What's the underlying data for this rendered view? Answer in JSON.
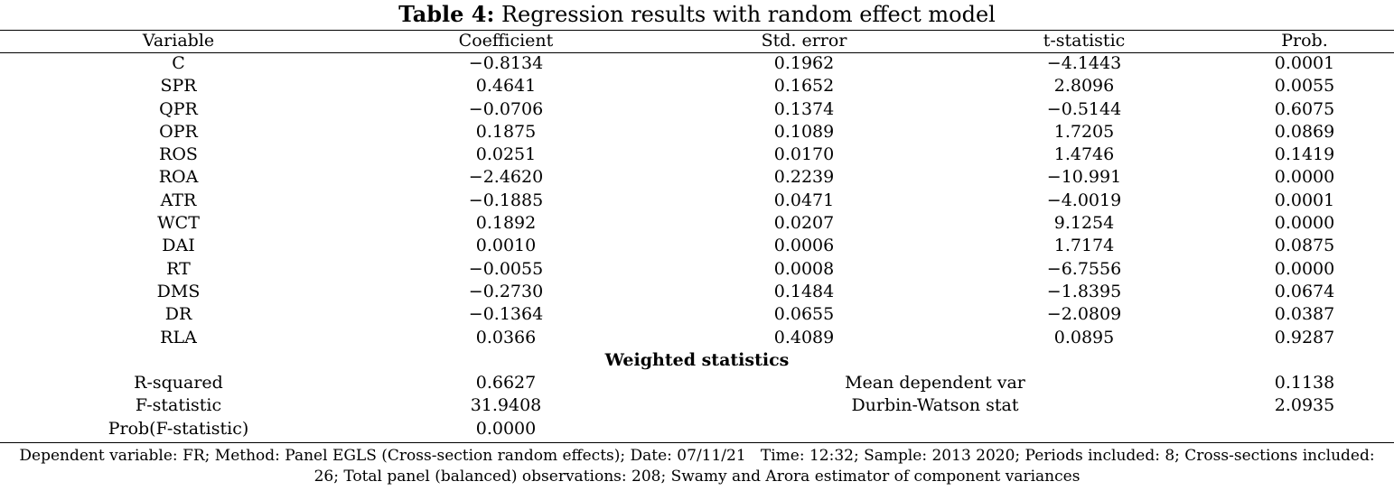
{
  "caption": {
    "label": "Table 4:",
    "text": "Regression results with random effect model"
  },
  "columns": [
    "Variable",
    "Coefficient",
    "Std. error",
    "t-statistic",
    "Prob."
  ],
  "rows": [
    [
      "C",
      "−0.8134",
      "0.1962",
      "−4.1443",
      "0.0001"
    ],
    [
      "SPR",
      "0.4641",
      "0.1652",
      "2.8096",
      "0.0055"
    ],
    [
      "QPR",
      "−0.0706",
      "0.1374",
      "−0.5144",
      "0.6075"
    ],
    [
      "OPR",
      "0.1875",
      "0.1089",
      "1.7205",
      "0.0869"
    ],
    [
      "ROS",
      "0.0251",
      "0.0170",
      "1.4746",
      "0.1419"
    ],
    [
      "ROA",
      "−2.4620",
      "0.2239",
      "−10.991",
      "0.0000"
    ],
    [
      "ATR",
      "−0.1885",
      "0.0471",
      "−4.0019",
      "0.0001"
    ],
    [
      "WCT",
      "0.1892",
      "0.0207",
      "9.1254",
      "0.0000"
    ],
    [
      "DAI",
      "0.0010",
      "0.0006",
      "1.7174",
      "0.0875"
    ],
    [
      "RT",
      "−0.0055",
      "0.0008",
      "−6.7556",
      "0.0000"
    ],
    [
      "DMS",
      "−0.2730",
      "0.1484",
      "−1.8395",
      "0.0674"
    ],
    [
      "DR",
      "−0.1364",
      "0.0655",
      "−2.0809",
      "0.0387"
    ],
    [
      "RLA",
      "0.0366",
      "0.4089",
      "0.0895",
      "0.9287"
    ]
  ],
  "weighted": {
    "title": "Weighted statistics",
    "rows": [
      [
        "R-squared",
        "0.6627",
        "Mean dependent var",
        "0.1138"
      ],
      [
        "F-statistic",
        "31.9408",
        "Durbin-Watson stat",
        "2.0935"
      ],
      [
        "Prob(F-statistic)",
        "0.0000",
        "",
        ""
      ]
    ]
  },
  "notes": {
    "line1": "Dependent variable: FR; Method: Panel EGLS (Cross-section random effects); Date: 07/11/21   Time: 12:32; Sample: 2013 2020; Periods included: 8; Cross-sections included:",
    "line2": "26; Total panel (balanced) observations: 208; Swamy and Arora estimator of component variances"
  }
}
